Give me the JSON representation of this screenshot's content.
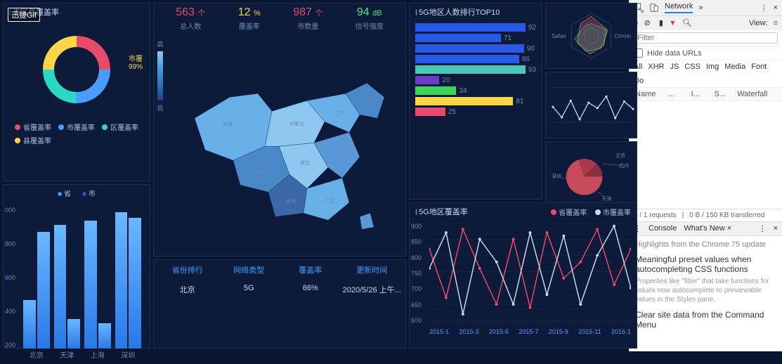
{
  "badge_text": "迅捷Gif",
  "colors": {
    "bg": "#0a1530",
    "panel": "#0d1a3a",
    "border": "#1a2f5a",
    "accent": "#4a9eff",
    "text": "#a8c0e8",
    "muted": "#6a8ab8"
  },
  "donut_panel": {
    "title": "市区县覆盖率",
    "slices": [
      {
        "color": "#e84a6a",
        "pct": 25
      },
      {
        "color": "#4a9eff",
        "pct": 30
      },
      {
        "color": "#2ad8c8",
        "pct": 20
      },
      {
        "color": "#f8d648",
        "pct": 25
      }
    ],
    "side_labels": [
      {
        "text": "市覆",
        "val": "99%"
      }
    ],
    "legend": [
      {
        "color": "#e84a6a",
        "label": "省覆盖率"
      },
      {
        "color": "#4a9eff",
        "label": "市覆盖率"
      },
      {
        "color": "#2ad8c8",
        "label": "区覆盖率"
      },
      {
        "color": "#f8d648",
        "label": "县覆盖率"
      }
    ]
  },
  "bar_panel": {
    "legend": [
      {
        "color": "#4a9eff",
        "label": "省",
        "box": "■"
      },
      {
        "color": "#2a58c8",
        "label": "市",
        "box": "■"
      }
    ],
    "ymax": 1000,
    "ytick_step": 200,
    "yticks": [
      "000",
      "800",
      "600",
      "400",
      "200"
    ],
    "categories": [
      "北京",
      "天津",
      "上海",
      "深圳"
    ],
    "series_a": {
      "color_top": "#6ab8ff",
      "color_bot": "#2a78e8",
      "values": [
        340,
        870,
        900,
        960
      ]
    },
    "series_b": {
      "color_top": "#6ab8ff",
      "color_bot": "#2a78e8",
      "values": [
        820,
        210,
        180,
        920
      ]
    }
  },
  "metrics": [
    {
      "value": "563",
      "unit": "个",
      "label": "总人数",
      "color": "#e84a6a"
    },
    {
      "value": "12",
      "unit": "%",
      "label": "覆盖率",
      "color": "#f8d648"
    },
    {
      "value": "987",
      "unit": "个",
      "label": "市数量",
      "color": "#e84a6a"
    },
    {
      "value": "94",
      "unit": "dB",
      "label": "信号强度",
      "color": "#4ae88a"
    }
  ],
  "map": {
    "scale_top": "高",
    "scale_bot": "低",
    "fill_colors": [
      "#8ec8f0",
      "#6ab0e8",
      "#5a98d8",
      "#4a88c8",
      "#3a68a8"
    ]
  },
  "table": {
    "headers": [
      "省份排行",
      "网络类型",
      "覆盖率",
      "更新时间"
    ],
    "rows": [
      [
        "北京",
        "5G",
        "66%",
        "2020/5/26 上午..."
      ]
    ]
  },
  "top10": {
    "title": "5G地区人数排行TOP10",
    "bars": [
      {
        "val": 92,
        "color": "#2a58e8"
      },
      {
        "val": 71,
        "color": "#2a58e8"
      },
      {
        "val": 90,
        "color": "#2a58e8"
      },
      {
        "val": 86,
        "color": "#2a58e8"
      },
      {
        "val": 93,
        "color": "#4ac8b8"
      },
      {
        "val": 20,
        "color": "#6a3ac8"
      },
      {
        "val": 34,
        "color": "#3ad858"
      },
      {
        "val": 81,
        "color": "#f8d648"
      },
      {
        "val": 25,
        "color": "#e84a6a"
      }
    ]
  },
  "radar": {
    "left_label": "Safari",
    "right_label": "Chrom",
    "ring_color": "#f8d648",
    "shape_colors": [
      "#e84a6a",
      "#4ae88a"
    ]
  },
  "spark": {
    "line_color": "#cfe6ff",
    "points_y": [
      45,
      20,
      60,
      15,
      55,
      42,
      70,
      18,
      58,
      40
    ]
  },
  "pie": {
    "labels": [
      "深圳",
      "北京",
      "杭州",
      "天津"
    ],
    "slices": [
      {
        "color": "#c84a5a",
        "pct": 55
      },
      {
        "color": "#a83a4a",
        "pct": 20
      },
      {
        "color": "#883040",
        "pct": 20
      }
    ]
  },
  "coverage": {
    "title": "5G地区覆盖率",
    "legend": [
      {
        "color": "#e84a6a",
        "label": "省覆盖率"
      },
      {
        "color": "#c8d8f0",
        "label": "市覆盖率"
      }
    ],
    "xticks": [
      "2015-1",
      "2015-3",
      "2015-5",
      "2015-7",
      "2015-9",
      "2015-11",
      "2016-1"
    ],
    "yticks": [
      "900",
      "850",
      "800",
      "750",
      "700",
      "650",
      "600"
    ],
    "ylim": [
      600,
      900
    ],
    "series_a": {
      "color": "#e84a6a",
      "values": [
        820,
        670,
        880,
        760,
        650,
        850,
        640,
        870,
        730,
        780,
        880,
        710,
        820
      ]
    },
    "series_b": {
      "color": "#c8d8f0",
      "values": [
        760,
        870,
        620,
        850,
        780,
        650,
        870,
        680,
        860,
        650,
        800,
        890,
        700
      ]
    }
  },
  "devtools": {
    "tabs": {
      "active": "Network",
      "more": "»"
    },
    "view_label": "View:",
    "filter_placeholder": "Filter",
    "hide_urls": "Hide data URLs",
    "types": [
      "All",
      "XHR",
      "JS",
      "CSS",
      "Img",
      "Media",
      "Font",
      "Do"
    ],
    "grid_cols": [
      "Name",
      "...",
      "I...",
      "S...",
      "Waterfall"
    ],
    "status": {
      "requests": "0 / 1 requests",
      "transfer": "0 B / 150 KB transferred"
    },
    "drawer_tabs": {
      "console": "Console",
      "whatsnew": "What's New ×"
    },
    "headline": "Highlights from the Chrome 75 update",
    "item1_title": "Meaningful preset values when autocompleting CSS functions",
    "item1_body": "Properties like \"filter\" that take functions for values now autocomplete to previewable values in the Styles pane.",
    "item2_title": "Clear site data from the Command Menu"
  }
}
